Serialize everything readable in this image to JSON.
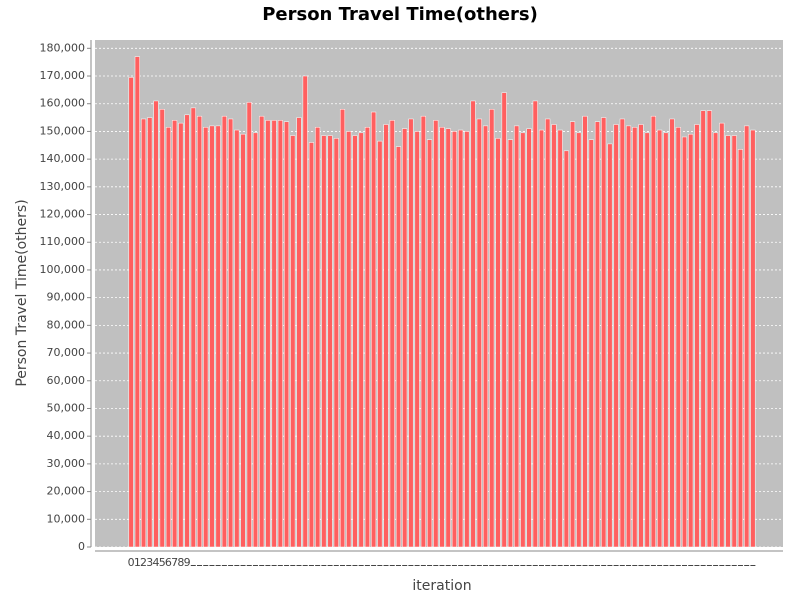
{
  "chart_data": {
    "type": "bar",
    "title": "Person Travel Time(others)",
    "x_label": "iteration",
    "y_label": "Person Travel Time(others)",
    "categories": [
      "0",
      "1",
      "2",
      "3",
      "4",
      "5",
      "6",
      "7",
      "8",
      "9",
      null,
      null,
      null,
      null,
      null,
      null,
      null,
      null,
      null,
      null,
      null,
      null,
      null,
      null,
      null,
      null,
      null,
      null,
      null,
      null,
      null,
      null,
      null,
      null,
      null,
      null,
      null,
      null,
      null,
      null,
      null,
      null,
      null,
      null,
      null,
      null,
      null,
      null,
      null,
      null,
      null,
      null,
      null,
      null,
      null,
      null,
      null,
      null,
      null,
      null,
      null,
      null,
      null,
      null,
      null,
      null,
      null,
      null,
      null,
      null,
      null,
      null,
      null,
      null,
      null,
      null,
      null,
      null,
      null,
      null,
      null,
      null,
      null,
      null,
      null,
      null,
      null,
      null,
      null,
      null,
      null,
      null,
      null,
      null,
      null,
      null,
      null,
      null,
      null,
      null,
      null
    ],
    "values": [
      169500,
      177000,
      154500,
      155000,
      161000,
      158000,
      151500,
      154000,
      153000,
      156000,
      158500,
      155500,
      151500,
      152000,
      152000,
      155500,
      154500,
      150500,
      149000,
      160500,
      149500,
      155500,
      154000,
      154000,
      154000,
      153500,
      148500,
      155000,
      170000,
      146000,
      151500,
      148500,
      148500,
      147500,
      158000,
      150000,
      148500,
      149500,
      151500,
      157000,
      146500,
      152500,
      154000,
      144500,
      151000,
      154500,
      150000,
      155500,
      147000,
      154000,
      151500,
      151000,
      150000,
      150500,
      150000,
      161000,
      154500,
      152000,
      158000,
      147500,
      164000,
      147000,
      152000,
      149500,
      151000,
      161000,
      150500,
      154500,
      152500,
      150500,
      143000,
      153500,
      149500,
      155500,
      147000,
      153500,
      155000,
      145500,
      152500,
      154500,
      152000,
      151500,
      152500,
      149500,
      155500,
      150500,
      149500,
      154500,
      151500,
      148000,
      149000,
      152500,
      157500,
      157500,
      149500,
      153000,
      148500,
      148500,
      143500,
      152000,
      150500
    ],
    "color": "#ff5f5f",
    "grid": true,
    "ylim": [
      0,
      183000
    ],
    "yticks": [
      0,
      {
        "value": 10000,
        "label": "10,000"
      },
      {
        "value": 20000,
        "label": "20,000"
      },
      {
        "value": 30000,
        "label": "30,000"
      },
      {
        "value": 40000,
        "label": "40,000"
      },
      {
        "value": 50000,
        "label": "50,000"
      },
      {
        "value": 60000,
        "label": "60,000"
      },
      {
        "value": 70000,
        "label": "70,000"
      },
      {
        "value": 80000,
        "label": "80,000"
      },
      {
        "value": 90000,
        "label": "90,000"
      },
      {
        "value": 100000,
        "label": "100,000"
      },
      {
        "value": 110000,
        "label": "110,000"
      },
      {
        "value": 120000,
        "label": "120,000"
      },
      {
        "value": 130000,
        "label": "130,000"
      },
      {
        "value": 140000,
        "label": "140,000"
      },
      {
        "value": 150000,
        "label": "150,000"
      },
      {
        "value": 160000,
        "label": "160,000"
      },
      {
        "value": 170000,
        "label": "170,000"
      },
      {
        "value": 180000,
        "label": "180,000"
      }
    ]
  }
}
